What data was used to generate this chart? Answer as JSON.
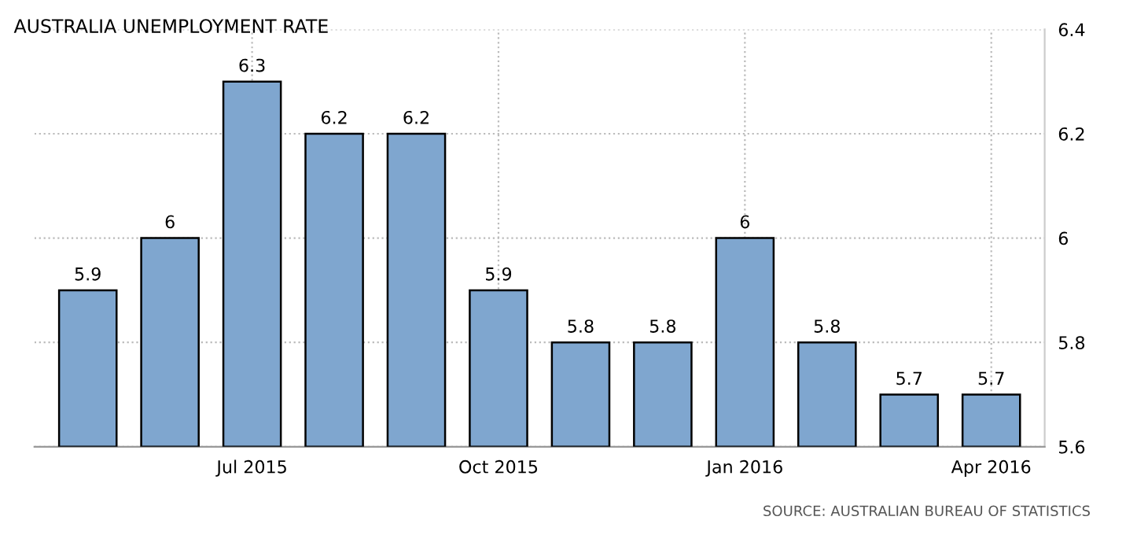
{
  "chart_data": {
    "type": "bar",
    "title": "AUSTRALIA UNEMPLOYMENT RATE",
    "categories": [
      null,
      null,
      "Jul 2015",
      null,
      null,
      "Oct 2015",
      null,
      null,
      "Jan 2016",
      null,
      null,
      "Apr 2016"
    ],
    "values": [
      5.9,
      6,
      6.3,
      6.2,
      6.2,
      5.9,
      5.8,
      5.8,
      6,
      5.8,
      5.7,
      5.7
    ],
    "color": "#7fa6cf",
    "ylim": [
      5.6,
      6.4
    ],
    "yticks": [
      5.6,
      5.8,
      6,
      6.2,
      6.4
    ],
    "grid": true,
    "data_labels": true,
    "annotations": [
      "SOURCE: AUSTRALIAN BUREAU OF STATISTICS"
    ]
  }
}
